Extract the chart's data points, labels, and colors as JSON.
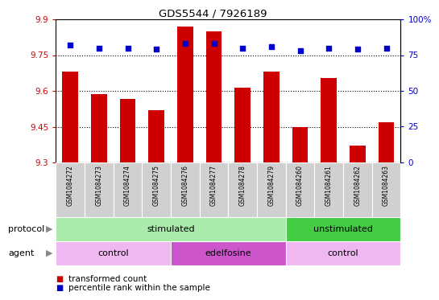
{
  "title": "GDS5544 / 7926189",
  "samples": [
    "GSM1084272",
    "GSM1084273",
    "GSM1084274",
    "GSM1084275",
    "GSM1084276",
    "GSM1084277",
    "GSM1084278",
    "GSM1084279",
    "GSM1084260",
    "GSM1084261",
    "GSM1084262",
    "GSM1084263"
  ],
  "transformed_count": [
    9.68,
    9.585,
    9.565,
    9.52,
    9.87,
    9.85,
    9.615,
    9.68,
    9.45,
    9.655,
    9.37,
    9.47
  ],
  "percentile_rank": [
    82,
    80,
    80,
    79,
    83,
    83,
    80,
    81,
    78,
    80,
    79,
    80
  ],
  "ylim_left": [
    9.3,
    9.9
  ],
  "ylim_right": [
    0,
    100
  ],
  "yticks_left": [
    9.3,
    9.45,
    9.6,
    9.75,
    9.9
  ],
  "yticks_right": [
    0,
    25,
    50,
    75,
    100
  ],
  "ytick_labels_left": [
    "9.3",
    "9.45",
    "9.6",
    "9.75",
    "9.9"
  ],
  "ytick_labels_right": [
    "0",
    "25",
    "50",
    "75",
    "100%"
  ],
  "bar_color": "#cc0000",
  "dot_color": "#0000cc",
  "protocol_groups": [
    {
      "label": "stimulated",
      "start": 0,
      "end": 7,
      "color": "#aaeaaa"
    },
    {
      "label": "unstimulated",
      "start": 8,
      "end": 11,
      "color": "#44cc44"
    }
  ],
  "agent_groups": [
    {
      "label": "control",
      "start": 0,
      "end": 3,
      "color": "#f0b8f0"
    },
    {
      "label": "edelfosine",
      "start": 4,
      "end": 7,
      "color": "#cc55cc"
    },
    {
      "label": "control",
      "start": 8,
      "end": 11,
      "color": "#f0b8f0"
    }
  ],
  "legend_bar_label": "transformed count",
  "legend_dot_label": "percentile rank within the sample",
  "bar_width": 0.55,
  "left_label_color": "#cc0000",
  "right_label_color": "#0000cc",
  "tick_label_bg": "#cccccc",
  "protocol_label": "protocol",
  "agent_label": "agent",
  "arrow_color": "#888888"
}
